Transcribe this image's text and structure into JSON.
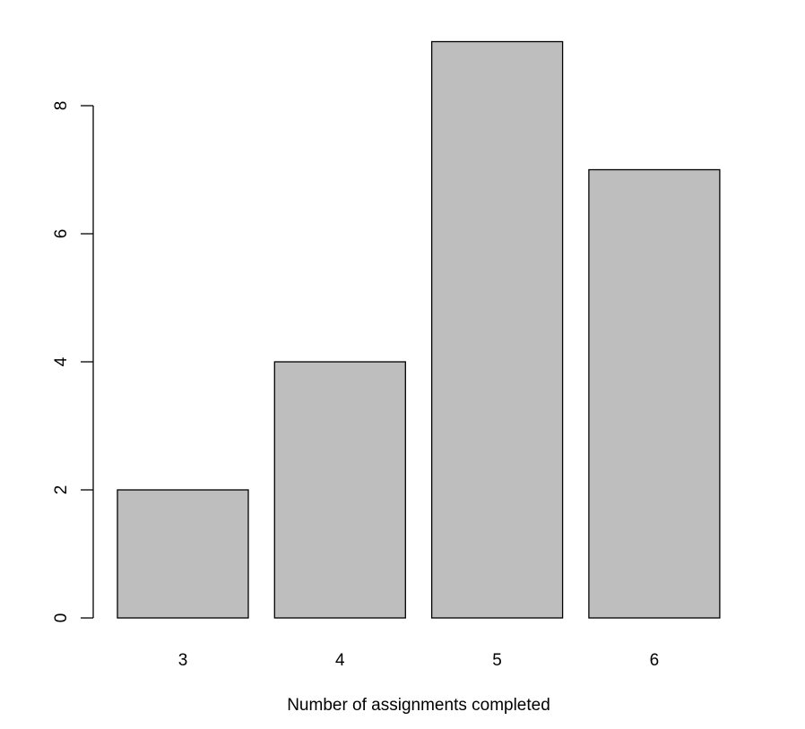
{
  "chart_data": {
    "type": "bar",
    "categories": [
      "3",
      "4",
      "5",
      "6"
    ],
    "values": [
      2,
      4,
      9,
      7
    ],
    "title": "",
    "xlabel": "Number of assignments completed",
    "ylabel": "",
    "ylim": [
      0,
      9
    ],
    "y_ticks": [
      0,
      2,
      4,
      6,
      8
    ],
    "y_tick_labels": [
      "0",
      "2",
      "4",
      "6",
      "8"
    ],
    "grid": false,
    "legend": "none",
    "bar_fill": "#bebebe",
    "bar_stroke": "#000000"
  }
}
